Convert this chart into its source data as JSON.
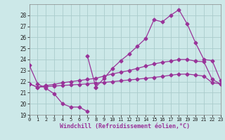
{
  "background_color": "#cce8e8",
  "grid_color": "#aacccc",
  "line_color": "#993399",
  "xlabel": "Windchill (Refroidissement éolien,°C)",
  "xlim": [
    0,
    23
  ],
  "ylim": [
    19,
    29
  ],
  "yticks": [
    19,
    20,
    21,
    22,
    23,
    24,
    25,
    26,
    27,
    28
  ],
  "xticks": [
    0,
    1,
    2,
    3,
    4,
    5,
    6,
    7,
    8,
    9,
    10,
    11,
    12,
    13,
    14,
    15,
    16,
    17,
    18,
    19,
    20,
    21,
    22,
    23
  ],
  "series": [
    {
      "x": [
        0,
        1,
        2,
        3,
        4,
        5,
        6,
        7
      ],
      "y": [
        23.5,
        21.8,
        21.4,
        20.9,
        20.0,
        19.7,
        19.7,
        19.3
      ]
    },
    {
      "x": [
        7,
        8
      ],
      "y": [
        24.3,
        21.5
      ]
    },
    {
      "x": [
        8,
        9,
        10,
        11,
        12,
        13,
        14,
        15,
        16,
        17,
        18,
        19,
        20,
        21,
        22,
        23
      ],
      "y": [
        21.5,
        22.3,
        23.2,
        23.9,
        24.5,
        25.2,
        25.9,
        27.6,
        27.4,
        28.0,
        28.5,
        27.2,
        25.5,
        24.0,
        23.9,
        22.1
      ]
    },
    {
      "x": [
        0,
        1,
        2,
        3,
        4,
        5,
        6,
        7,
        8,
        9,
        10,
        11,
        12,
        13,
        14,
        15,
        16,
        17,
        18,
        19,
        20,
        21,
        22,
        23
      ],
      "y": [
        21.8,
        21.5,
        21.65,
        21.75,
        21.9,
        22.0,
        22.1,
        22.2,
        22.3,
        22.5,
        22.7,
        22.85,
        23.0,
        23.2,
        23.4,
        23.6,
        23.75,
        23.85,
        24.0,
        24.0,
        23.85,
        23.8,
        22.2,
        21.8
      ]
    },
    {
      "x": [
        0,
        1,
        2,
        3,
        4,
        5,
        6,
        7,
        8,
        9,
        10,
        11,
        12,
        13,
        14,
        15,
        16,
        17,
        18,
        19,
        20,
        21,
        22,
        23
      ],
      "y": [
        21.8,
        21.5,
        21.55,
        21.6,
        21.65,
        21.7,
        21.75,
        21.8,
        21.87,
        21.93,
        22.0,
        22.07,
        22.15,
        22.22,
        22.3,
        22.38,
        22.47,
        22.58,
        22.67,
        22.68,
        22.6,
        22.5,
        21.9,
        21.8
      ]
    }
  ]
}
